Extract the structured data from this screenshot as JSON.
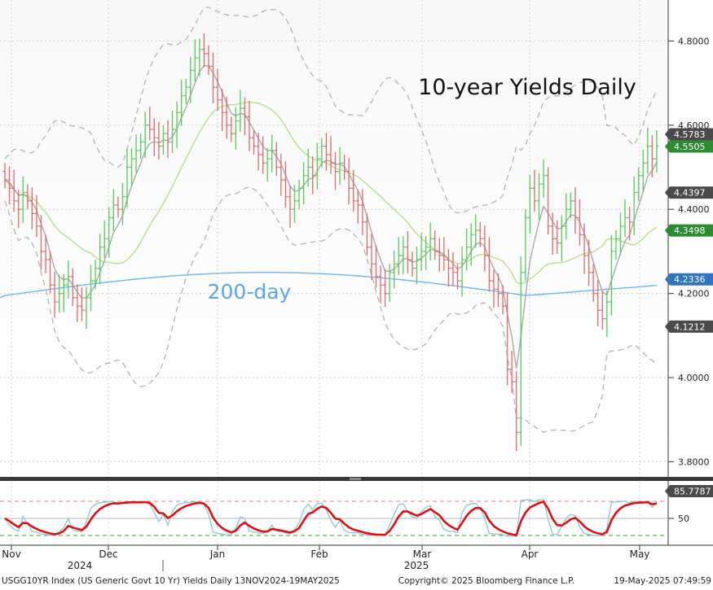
{
  "chart_data": {
    "type": "bar",
    "subtype": "ohlc-bar",
    "title": "10-year Yields Daily",
    "annotation": "200-day",
    "ylim": [
      3.76,
      4.86
    ],
    "y_ticks": [
      "3.8000",
      "4.0000",
      "4.2000",
      "4.4000",
      "4.6000",
      "4.8000"
    ],
    "x_months": [
      "Nov",
      "Dec",
      "Jan",
      "Feb",
      "Mar",
      "Apr",
      "May"
    ],
    "x_years": [
      "2024",
      "2025"
    ],
    "price_tags": [
      {
        "label": "4.5783",
        "value": 4.5783,
        "kind": "gray"
      },
      {
        "label": "4.5505",
        "value": 4.5505,
        "kind": "green"
      },
      {
        "label": "4.4397",
        "value": 4.4397,
        "kind": "gray"
      },
      {
        "label": "4.3498",
        "value": 4.3498,
        "kind": "green"
      },
      {
        "label": "4.2336",
        "value": 4.2336,
        "kind": "blue"
      },
      {
        "label": "4.1212",
        "value": 4.1212,
        "kind": "gray"
      }
    ],
    "closes": [
      4.47,
      4.45,
      4.42,
      4.4,
      4.44,
      4.42,
      4.39,
      4.36,
      4.3,
      4.28,
      4.22,
      4.18,
      4.2,
      4.22,
      4.24,
      4.19,
      4.17,
      4.16,
      4.19,
      4.23,
      4.26,
      4.31,
      4.33,
      4.38,
      4.41,
      4.4,
      4.43,
      4.5,
      4.52,
      4.54,
      4.56,
      4.6,
      4.59,
      4.57,
      4.55,
      4.58,
      4.56,
      4.59,
      4.63,
      4.67,
      4.69,
      4.73,
      4.76,
      4.78,
      4.77,
      4.74,
      4.69,
      4.66,
      4.63,
      4.6,
      4.58,
      4.61,
      4.64,
      4.62,
      4.57,
      4.55,
      4.53,
      4.51,
      4.52,
      4.54,
      4.5,
      4.47,
      4.43,
      4.4,
      4.42,
      4.45,
      4.48,
      4.5,
      4.48,
      4.52,
      4.55,
      4.53,
      4.51,
      4.49,
      4.51,
      4.49,
      4.45,
      4.42,
      4.41,
      4.37,
      4.31,
      4.27,
      4.24,
      4.22,
      4.2,
      4.25,
      4.27,
      4.29,
      4.31,
      4.28,
      4.26,
      4.28,
      4.3,
      4.31,
      4.33,
      4.3,
      4.29,
      4.28,
      4.26,
      4.25,
      4.23,
      4.28,
      4.31,
      4.34,
      4.35,
      4.33,
      4.29,
      4.23,
      4.21,
      4.2,
      4.17,
      4.02,
      3.99,
      3.87,
      4.25,
      4.38,
      4.45,
      4.42,
      4.46,
      4.48,
      4.36,
      4.33,
      4.32,
      4.36,
      4.4,
      4.42,
      4.38,
      4.34,
      4.29,
      4.25,
      4.2,
      4.16,
      4.14,
      4.18,
      4.3,
      4.33,
      4.36,
      4.38,
      4.37,
      4.44,
      4.48,
      4.51,
      4.55,
      4.52,
      4.55
    ]
  },
  "oscillator": {
    "label": "85.7787",
    "level_label": "50"
  },
  "footer": {
    "left": "USGG10YR Index (US Generic Govt 10 Yr) Yields  Daily 13NOV2024-19MAY2025",
    "center": "Copyright© 2025 Bloomberg Finance L.P.",
    "right": "19-May-2025 07:49:59"
  },
  "colors": {
    "up": "#59c95c",
    "down": "#e06a6a",
    "ma_gray": "#a9a9a9",
    "ma_green": "#b5e08c",
    "ma_200": "#6fb7ee",
    "band": "#b4b4b4",
    "tag_gray": "#4a4a4a",
    "tag_green": "#2e8b34",
    "tag_blue": "#2f74c0",
    "osc_red": "#e01010",
    "osc_blue": "#8ec5d6"
  }
}
